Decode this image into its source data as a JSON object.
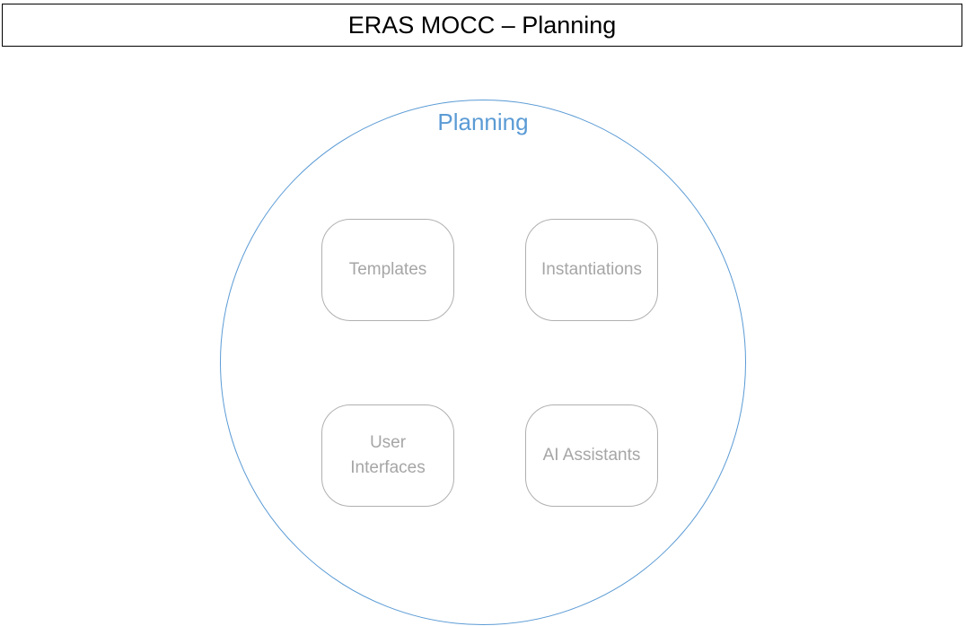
{
  "header": {
    "title": "ERAS MOCC – Planning"
  },
  "planning": {
    "label": "Planning",
    "modules": [
      {
        "label": "Templates"
      },
      {
        "label": "Instantiations"
      },
      {
        "label": "User\nInterfaces"
      },
      {
        "label": "AI Assistants"
      }
    ]
  },
  "colors": {
    "accent": "#5b9bd5",
    "module_text": "#a6a6a6",
    "module_border": "#b0b0b0"
  }
}
